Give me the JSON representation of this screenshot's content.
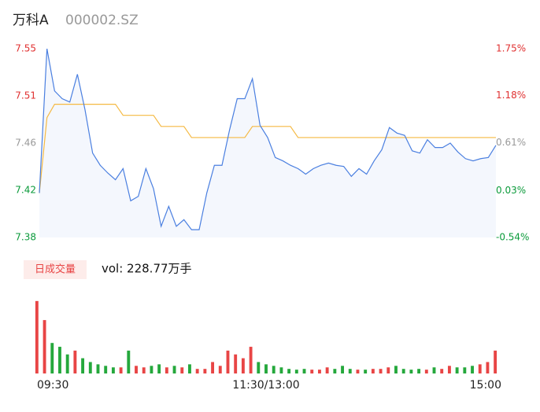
{
  "header": {
    "name": "万科A",
    "code": "000002.SZ"
  },
  "chart_data": [
    {
      "type": "line",
      "x": [
        0,
        4,
        8,
        12,
        16,
        20,
        24,
        28,
        32,
        36,
        40,
        44,
        48,
        52,
        56,
        60,
        64,
        68,
        72,
        76,
        80,
        84,
        88,
        92,
        96,
        100,
        104,
        108,
        112,
        116,
        120,
        124,
        128,
        132,
        136,
        140,
        144,
        148,
        152,
        156,
        160,
        164,
        168,
        172,
        176,
        180,
        184,
        188,
        192,
        196,
        200,
        204,
        208,
        212,
        216,
        220,
        224,
        228,
        232,
        236,
        240
      ],
      "xlim": [
        0,
        240
      ],
      "ylim": [
        7.38,
        7.55
      ],
      "yticks": [
        {
          "value": 7.38,
          "label": "7.38"
        },
        {
          "value": 7.4225,
          "label": "7.42"
        },
        {
          "value": 7.465,
          "label": "7.46"
        },
        {
          "value": 7.5075,
          "label": "7.51"
        },
        {
          "value": 7.55,
          "label": "7.55"
        }
      ],
      "y2lim": [
        -0.54,
        1.75
      ],
      "y2ticks": [
        {
          "value": -0.54,
          "label": "-0.54%"
        },
        {
          "value": 0.03,
          "label": "0.03%"
        },
        {
          "value": 0.61,
          "label": "0.61%"
        },
        {
          "value": 1.18,
          "label": "1.18%"
        },
        {
          "value": 1.75,
          "label": "1.75%"
        }
      ],
      "tick_colors": [
        "#0a9a3a",
        "#0a9a3a",
        "#999999",
        "#e03030",
        "#e03030"
      ],
      "fill": "#f4f7fd",
      "series": [
        {
          "color": "#4a7fe0",
          "values": [
            7.42,
            7.55,
            7.512,
            7.505,
            7.502,
            7.527,
            7.495,
            7.456,
            7.445,
            7.438,
            7.432,
            7.442,
            7.413,
            7.417,
            7.442,
            7.424,
            7.39,
            7.408,
            7.39,
            7.396,
            7.387,
            7.387,
            7.42,
            7.445,
            7.445,
            7.477,
            7.505,
            7.505,
            7.523,
            7.481,
            7.47,
            7.452,
            7.449,
            7.445,
            7.442,
            7.437,
            7.442,
            7.445,
            7.447,
            7.445,
            7.444,
            7.435,
            7.442,
            7.437,
            7.449,
            7.459,
            7.479,
            7.474,
            7.472,
            7.458,
            7.456,
            7.468,
            7.461,
            7.461,
            7.465,
            7.457,
            7.451,
            7.449,
            7.451,
            7.452,
            7.463
          ]
        },
        {
          "color": "#f5b942",
          "values": [
            7.42,
            7.488,
            7.5,
            7.5,
            7.5,
            7.5,
            7.5,
            7.5,
            7.5,
            7.5,
            7.5,
            7.49,
            7.49,
            7.49,
            7.49,
            7.49,
            7.48,
            7.48,
            7.48,
            7.48,
            7.47,
            7.47,
            7.47,
            7.47,
            7.47,
            7.47,
            7.47,
            7.47,
            7.48,
            7.48,
            7.48,
            7.48,
            7.48,
            7.48,
            7.47,
            7.47,
            7.47,
            7.47,
            7.47,
            7.47,
            7.47,
            7.47,
            7.47,
            7.47,
            7.47,
            7.47,
            7.47,
            7.47,
            7.47,
            7.47,
            7.47,
            7.47,
            7.47,
            7.47,
            7.47,
            7.47,
            7.47,
            7.47,
            7.47,
            7.47,
            7.47
          ]
        }
      ]
    },
    {
      "type": "bar",
      "badge": "日成交量",
      "title": "vol: 228.77万手",
      "xlim": [
        0,
        240
      ],
      "xticks": [
        {
          "value": 0,
          "label": "09:30"
        },
        {
          "value": 120,
          "label": "11:30/13:00"
        },
        {
          "value": 240,
          "label": "15:00"
        }
      ],
      "ylim": [
        0,
        100
      ],
      "up_color": "#e84545",
      "down_color": "#25a83c",
      "values": [
        95,
        70,
        40,
        35,
        25,
        30,
        20,
        15,
        12,
        10,
        8,
        8,
        30,
        10,
        8,
        10,
        12,
        8,
        10,
        8,
        12,
        6,
        6,
        15,
        10,
        30,
        25,
        20,
        35,
        15,
        12,
        10,
        8,
        6,
        5,
        6,
        5,
        5,
        8,
        6,
        10,
        6,
        5,
        5,
        6,
        6,
        8,
        10,
        6,
        5,
        6,
        5,
        8,
        6,
        10,
        8,
        8,
        10,
        12,
        15,
        30
      ]
    }
  ]
}
